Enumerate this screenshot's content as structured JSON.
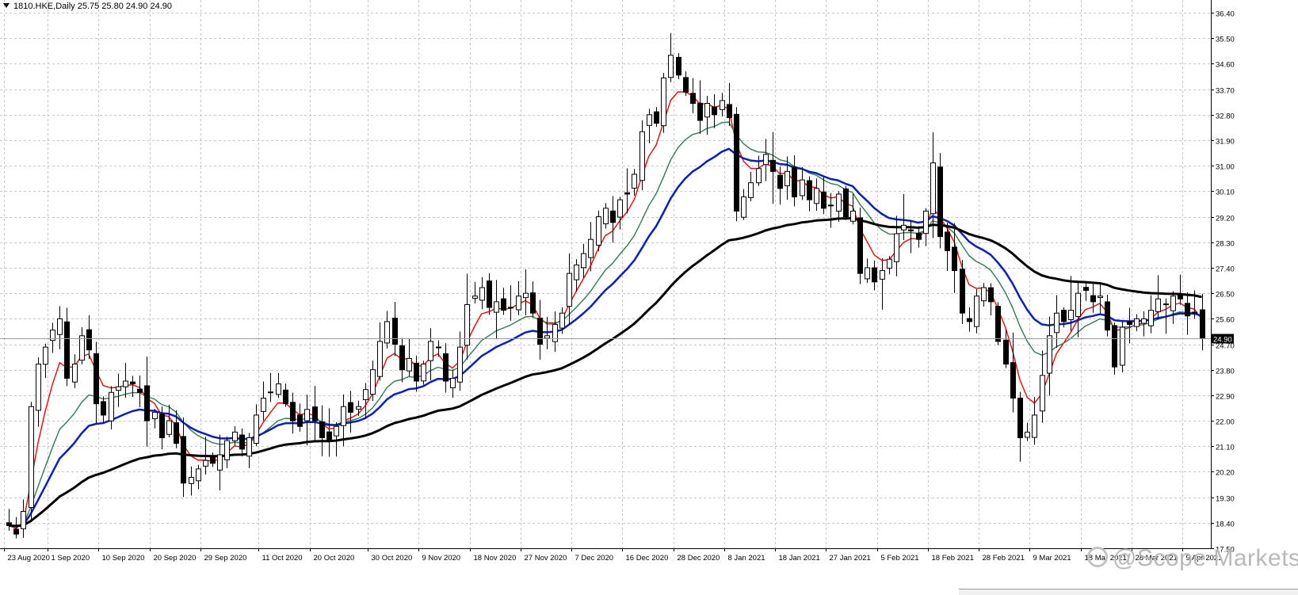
{
  "header": {
    "symbol_line": "1810.HKE,Daily  25.75 25.80 24.90 24.90"
  },
  "watermark": {
    "text": "@Scope Markets"
  },
  "chart_data": {
    "type": "candlestick",
    "symbol": "1810.HKE",
    "timeframe": "Daily",
    "last_price_label": "24.90",
    "ylim": [
      17.5,
      36.85
    ],
    "y_ticks": [
      "36.40",
      "35.50",
      "34.60",
      "33.70",
      "32.80",
      "31.90",
      "31.00",
      "30.10",
      "29.20",
      "28.30",
      "27.40",
      "26.50",
      "25.60",
      "24.70",
      "23.80",
      "22.90",
      "22.00",
      "21.10",
      "20.20",
      "19.30",
      "18.40",
      "17.50"
    ],
    "x_ticks": [
      {
        "index": 0,
        "label": "23 Aug 2020"
      },
      {
        "index": 6,
        "label": "1 Sep 2020"
      },
      {
        "index": 13,
        "label": "10 Sep 2020"
      },
      {
        "index": 20,
        "label": "20 Sep 2020"
      },
      {
        "index": 27,
        "label": "29 Sep 2020"
      },
      {
        "index": 35,
        "label": "11 Oct 2020"
      },
      {
        "index": 42,
        "label": "20 Oct 2020"
      },
      {
        "index": 50,
        "label": "30 Oct 2020"
      },
      {
        "index": 57,
        "label": "9 Nov 2020"
      },
      {
        "index": 64,
        "label": "18 Nov 2020"
      },
      {
        "index": 71,
        "label": "27 Nov 2020"
      },
      {
        "index": 78,
        "label": "7 Dec 2020"
      },
      {
        "index": 85,
        "label": "16 Dec 2020"
      },
      {
        "index": 92,
        "label": "28 Dec 2020"
      },
      {
        "index": 99,
        "label": "8 Jan 2021"
      },
      {
        "index": 106,
        "label": "18 Jan 2021"
      },
      {
        "index": 113,
        "label": "27 Jan 2021"
      },
      {
        "index": 120,
        "label": "5 Feb 2021"
      },
      {
        "index": 127,
        "label": "18 Feb 2021"
      },
      {
        "index": 134,
        "label": "28 Feb 2021"
      },
      {
        "index": 141,
        "label": "9 Mar 2021"
      },
      {
        "index": 148,
        "label": "18 Mar 2021"
      },
      {
        "index": 155,
        "label": "28 Mar 2021"
      },
      {
        "index": 162,
        "label": "9 Apr 2021"
      }
    ],
    "closes": [
      18.3,
      18.0,
      18.8,
      22.5,
      24.0,
      24.6,
      25.2,
      25.6,
      23.5,
      24.0,
      25.0,
      24.5,
      22.6,
      22.2,
      23.0,
      23.2,
      23.4,
      23.3,
      23.0,
      22.0,
      22.3,
      21.4,
      22.0,
      21.2,
      19.8,
      20.0,
      20.3,
      20.6,
      20.5,
      20.8,
      21.3,
      21.6,
      21.0,
      21.4,
      22.2,
      22.8,
      23.0,
      23.3,
      22.6,
      22.0,
      21.8,
      22.4,
      22.0,
      21.4,
      21.3,
      21.8,
      22.5,
      22.3,
      22.5,
      23.1,
      23.8,
      24.8,
      25.5,
      24.7,
      23.8,
      24.2,
      23.4,
      24.0,
      24.8,
      24.6,
      23.4,
      23.5,
      24.6,
      26.1,
      26.4,
      26.7,
      26.0,
      26.2,
      25.9,
      26.0,
      26.4,
      26.5,
      25.8,
      24.7,
      25.0,
      25.4,
      25.8,
      27.2,
      27.5,
      27.9,
      28.4,
      29.2,
      29.5,
      29.0,
      29.8,
      30.0,
      30.7,
      32.2,
      32.8,
      32.5,
      34.1,
      34.9,
      34.2,
      33.6,
      33.2,
      32.6,
      33.2,
      32.8,
      33.3,
      32.7,
      29.4,
      29.9,
      30.4,
      30.9,
      31.4,
      30.8,
      30.2,
      30.8,
      29.9,
      30.5,
      29.8,
      30.2,
      29.5,
      29.6,
      30.0,
      29.2,
      29.4,
      27.2,
      27.4,
      26.9,
      27.3,
      27.7,
      28.6,
      28.9,
      28.7,
      28.4,
      29.4,
      31.1,
      28.5,
      28.0,
      27.3,
      25.8,
      25.5,
      26.4,
      26.7,
      26.2,
      24.8,
      24.0,
      22.8,
      21.4,
      21.6,
      22.2,
      23.6,
      25.0,
      25.8,
      25.5,
      25.9,
      26.5,
      26.6,
      26.2,
      26.4,
      25.2,
      23.9,
      25.3,
      25.4,
      25.6,
      25.6,
      25.9,
      26.3,
      26.1,
      26.4,
      26.3,
      25.7,
      25.8,
      24.9
    ],
    "opens_first": 18.4,
    "indicators": [
      {
        "type": "SMA",
        "color": "#ff0000"
      },
      {
        "type": "SMA",
        "color": "#2e7d4f"
      },
      {
        "type": "SMA",
        "color": "#0a1ec8"
      },
      {
        "type": "SMA",
        "color": "#000000"
      }
    ],
    "grid": true,
    "colors": {
      "background": "#ffffff",
      "grid": "#c8c8c8",
      "candle_up": "#ffffff",
      "candle_down": "#000000",
      "candle_edge": "#000000",
      "price_label_bg": "#000000",
      "price_label_fg": "#ffffff"
    }
  }
}
